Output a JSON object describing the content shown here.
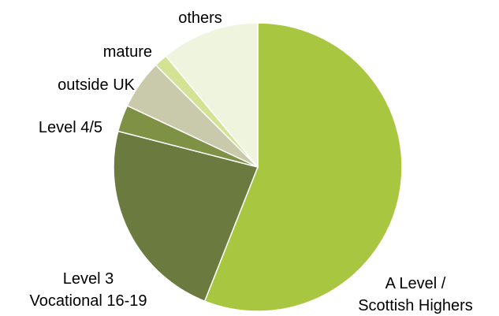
{
  "chart_data": {
    "type": "pie",
    "title": "",
    "slices": [
      {
        "label_lines": [
          "A Level /",
          "Scottish Highers"
        ],
        "value": 56.0,
        "color": "#a8c63f"
      },
      {
        "label_lines": [
          "Level 3",
          "Vocational 16-19"
        ],
        "value": 23.0,
        "color": "#6b7a3e"
      },
      {
        "label_lines": [
          "Level 4/5"
        ],
        "value": 3.0,
        "color": "#7f9145"
      },
      {
        "label_lines": [
          "outside UK"
        ],
        "value": 5.5,
        "color": "#c9c9ab"
      },
      {
        "label_lines": [
          "mature"
        ],
        "value": 1.5,
        "color": "#d3e393"
      },
      {
        "label_lines": [
          "others"
        ],
        "value": 11.0,
        "color": "#eff4df"
      }
    ]
  }
}
